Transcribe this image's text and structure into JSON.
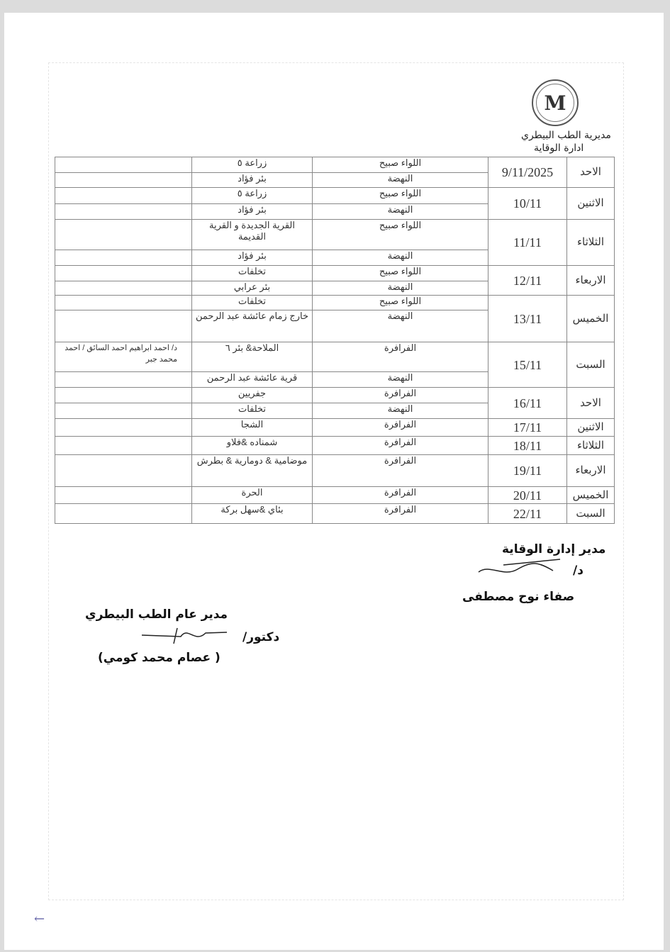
{
  "header": {
    "org": "مديرية الطب البيطري",
    "dept": "ادارة الوقاية",
    "logo_letter": "M"
  },
  "rows": [
    {
      "day": "الاحد",
      "date": "9/11/2025",
      "subs": [
        {
          "region": "اللواء صبيح",
          "villages": "زراعة ٥",
          "note": ""
        },
        {
          "region": "النهضة",
          "villages": "بئر فؤاد",
          "note": ""
        }
      ]
    },
    {
      "day": "الاثنين",
      "date": "10/11",
      "subs": [
        {
          "region": "اللواء صبيح",
          "villages": "زراعة ٥",
          "note": ""
        },
        {
          "region": "النهضة",
          "villages": "بئر فؤاد",
          "note": ""
        }
      ]
    },
    {
      "day": "الثلاثاء",
      "date": "11/11",
      "subs": [
        {
          "region": "اللواء صبيح",
          "villages": "القرية الجديدة و القرية القديمة",
          "note": ""
        },
        {
          "region": "النهضة",
          "villages": "بئر فؤاد",
          "note": ""
        }
      ]
    },
    {
      "day": "الاربعاء",
      "date": "12/11",
      "subs": [
        {
          "region": "اللواء صبيح",
          "villages": "تخلفات",
          "note": ""
        },
        {
          "region": "النهضة",
          "villages": "بئر عرابي",
          "note": ""
        }
      ]
    },
    {
      "day": "الخميس",
      "date": "13/11",
      "subs": [
        {
          "region": "اللواء صبيح",
          "villages": "تخلفات",
          "note": ""
        },
        {
          "region": "النهضة",
          "villages": "خارج زمام عائشة عبد الرحمن",
          "note": ""
        }
      ]
    },
    {
      "day": "السبت",
      "date": "15/11",
      "subs": [
        {
          "region": "الفرافرة",
          "villages": "الملاحة& بئر ٦",
          "note": "د/ احمد ابراهيم احمد السائق / احمد محمد جبر"
        },
        {
          "region": "النهضة",
          "villages": "قرية عائشة عبد الرحمن",
          "note": ""
        }
      ]
    },
    {
      "day": "الاحد",
      "date": "16/11",
      "subs": [
        {
          "region": "الفرافرة",
          "villages": "جفريين",
          "note": ""
        },
        {
          "region": "النهضة",
          "villages": "تخلفات",
          "note": ""
        }
      ]
    },
    {
      "day": "الاثنين",
      "date": "17/11",
      "subs": [
        {
          "region": "الفرافرة",
          "villages": "الشجا",
          "note": ""
        }
      ]
    },
    {
      "day": "الثلاثاء",
      "date": "18/11",
      "subs": [
        {
          "region": "الفرافرة",
          "villages": "شمناده &فلاو",
          "note": ""
        }
      ]
    },
    {
      "day": "الاربعاء",
      "date": "19/11",
      "subs": [
        {
          "region": "الفرافرة",
          "villages": "موضامية & دومارية & بطرش",
          "note": ""
        }
      ]
    },
    {
      "day": "الخميس",
      "date": "20/11",
      "subs": [
        {
          "region": "الفرافرة",
          "villages": "الحرة",
          "note": ""
        }
      ]
    },
    {
      "day": "السبت",
      "date": "22/11",
      "subs": [
        {
          "region": "الفرافرة",
          "villages": "بئاي &سهل بركة",
          "note": ""
        }
      ]
    }
  ],
  "signatures": {
    "prevention": {
      "title": "مدير إدارة الوقاية",
      "prefix": "د/",
      "name": "صفاء نوح مصطفى"
    },
    "general": {
      "title": "مدير عام الطب البيطري",
      "prefix": "دكتور/",
      "name": "( عصام محمد كومي)"
    }
  }
}
